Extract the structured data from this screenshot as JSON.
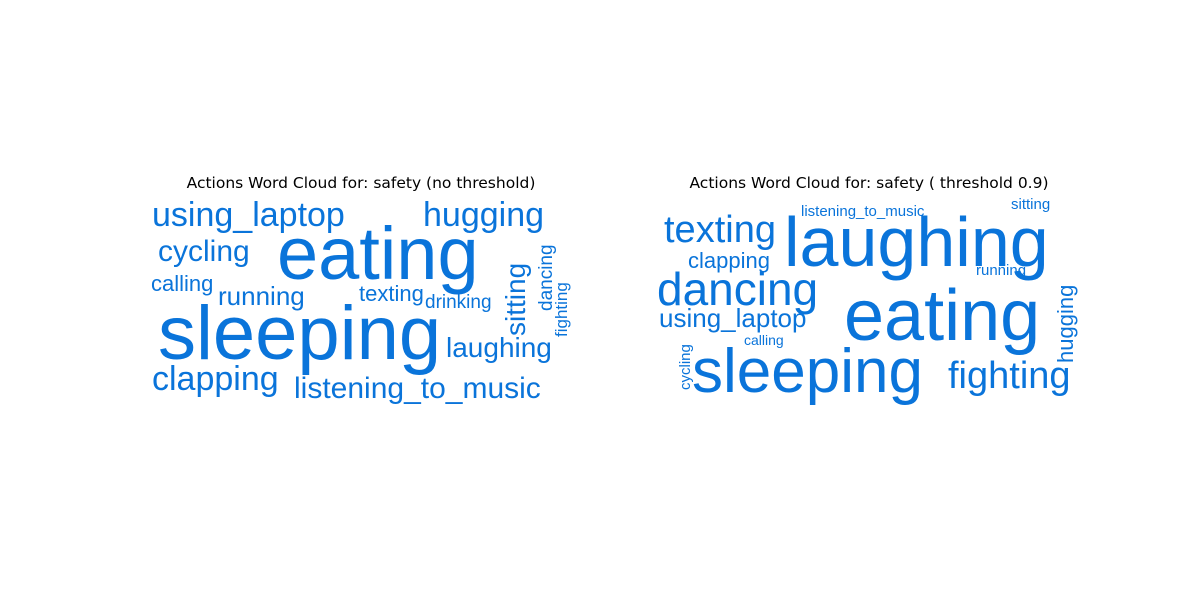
{
  "colors": {
    "word": "#0a74da",
    "title": "#000000",
    "background": "#ffffff"
  },
  "chart_data": [
    {
      "type": "wordcloud",
      "title": "Actions Word Cloud for: safety (no threshold)",
      "words": [
        {
          "text": "eating",
          "weight": 1.0
        },
        {
          "text": "sleeping",
          "weight": 1.0
        },
        {
          "text": "using_laptop",
          "weight": 0.42
        },
        {
          "text": "hugging",
          "weight": 0.42
        },
        {
          "text": "listening_to_music",
          "weight": 0.38
        },
        {
          "text": "clapping",
          "weight": 0.4
        },
        {
          "text": "laughing",
          "weight": 0.34
        },
        {
          "text": "cycling",
          "weight": 0.36
        },
        {
          "text": "sitting",
          "weight": 0.34
        },
        {
          "text": "running",
          "weight": 0.3
        },
        {
          "text": "calling",
          "weight": 0.26
        },
        {
          "text": "texting",
          "weight": 0.26
        },
        {
          "text": "dancing",
          "weight": 0.24
        },
        {
          "text": "drinking",
          "weight": 0.22
        },
        {
          "text": "fighting",
          "weight": 0.22
        }
      ]
    },
    {
      "type": "wordcloud",
      "title": "Actions Word Cloud for: safety ( threshold 0.9)",
      "words": [
        {
          "text": "laughing",
          "weight": 1.0
        },
        {
          "text": "eating",
          "weight": 1.0
        },
        {
          "text": "sleeping",
          "weight": 0.92
        },
        {
          "text": "dancing",
          "weight": 0.66
        },
        {
          "text": "texting",
          "weight": 0.54
        },
        {
          "text": "fighting",
          "weight": 0.54
        },
        {
          "text": "using_laptop",
          "weight": 0.38
        },
        {
          "text": "clapping",
          "weight": 0.34
        },
        {
          "text": "hugging",
          "weight": 0.3
        },
        {
          "text": "listening_to_music",
          "weight": 0.22
        },
        {
          "text": "running",
          "weight": 0.22
        },
        {
          "text": "sitting",
          "weight": 0.22
        },
        {
          "text": "calling",
          "weight": 0.2
        },
        {
          "text": "cycling",
          "weight": 0.2
        }
      ]
    }
  ]
}
